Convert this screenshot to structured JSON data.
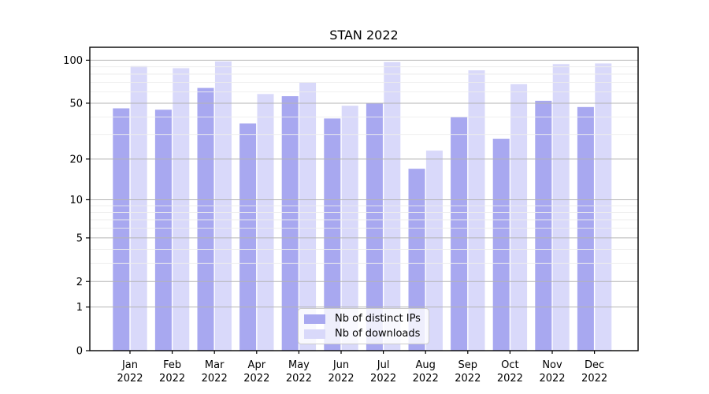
{
  "chart_data": {
    "type": "bar",
    "title": "STAN 2022",
    "categories": [
      "Jan",
      "Feb",
      "Mar",
      "Apr",
      "May",
      "Jun",
      "Jul",
      "Aug",
      "Sep",
      "Oct",
      "Nov",
      "Dec"
    ],
    "category_year": "2022",
    "series": [
      {
        "name": "Nb of distinct IPs",
        "color": "#a8a8f0",
        "values": [
          46,
          45,
          64,
          36,
          56,
          39,
          50,
          17,
          40,
          28,
          52,
          47
        ]
      },
      {
        "name": "Nb of downloads",
        "color": "#d9d9fa",
        "values": [
          91,
          88,
          98,
          58,
          70,
          48,
          97,
          23,
          85,
          68,
          94,
          95
        ]
      }
    ],
    "y_scale": "log10(value+1)",
    "y_ticks": [
      0,
      1,
      2,
      5,
      10,
      20,
      50,
      100
    ],
    "y_minor_ticks": [
      3,
      4,
      6,
      7,
      8,
      9,
      30,
      40,
      60,
      70,
      80,
      90
    ],
    "ylim": [
      0,
      123
    ],
    "grid": "both",
    "legend_position": "lower-center-inside"
  },
  "colors": {
    "axis": "#000000",
    "major_grid": "#b4b4b4",
    "minor_grid": "#ededed",
    "background": "#ffffff",
    "legend_border": "#cccccc"
  }
}
